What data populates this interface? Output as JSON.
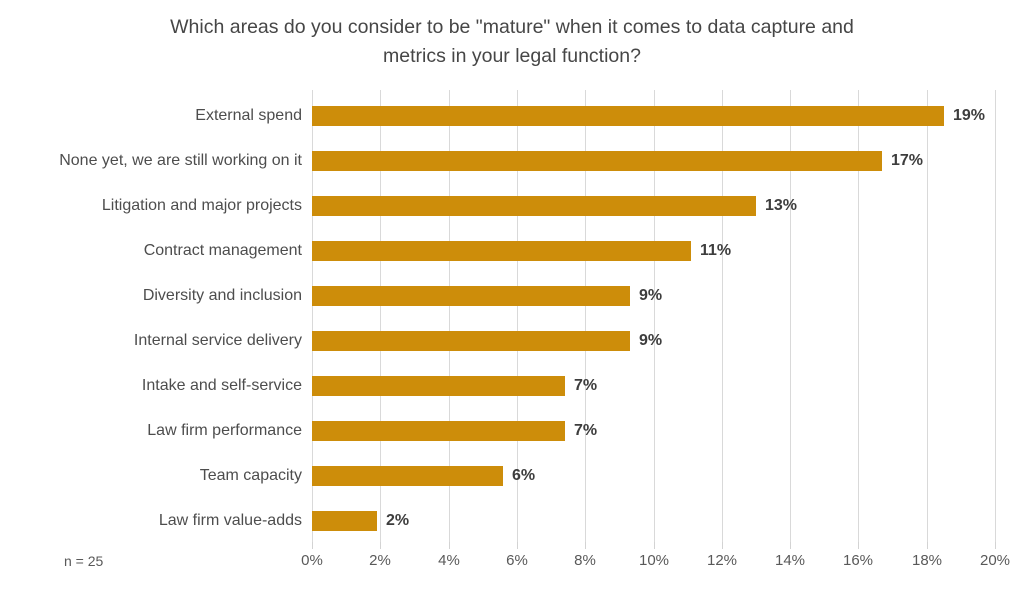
{
  "title_lines": [
    "Which areas do you consider to be \"mature\" when it comes to data capture and",
    "metrics in your legal function?"
  ],
  "footnote": "n = 25",
  "colors": {
    "bar": "#cd8d0a",
    "gridline": "#d9d9d9",
    "title_text": "#464646",
    "category_text": "#4d4d4d",
    "value_text": "#3d3d3d",
    "axis_text": "#595959"
  },
  "chart_data": {
    "type": "bar",
    "orientation": "horizontal",
    "title": "Which areas do you consider to be \"mature\" when it comes to data capture and metrics in your legal function?",
    "categories": [
      "External spend",
      "None yet, we are still working on it",
      "Litigation and major projects",
      "Contract management",
      "Diversity and inclusion",
      "Internal service delivery",
      "Intake and self-service",
      "Law firm performance",
      "Team capacity",
      "Law firm value-adds"
    ],
    "values": [
      19,
      17,
      13,
      11,
      9,
      9,
      7,
      7,
      6,
      2
    ],
    "data_labels": [
      "19%",
      "17%",
      "13%",
      "11%",
      "9%",
      "9%",
      "7%",
      "7%",
      "6%",
      "2%"
    ],
    "bar_lengths_pct": [
      18.5,
      16.7,
      13.0,
      11.1,
      9.3,
      9.3,
      7.4,
      7.4,
      5.6,
      1.9
    ],
    "xlabel": "",
    "ylabel": "",
    "xlim": [
      0,
      20
    ],
    "x_tick_step": 2,
    "x_tick_labels": [
      "0%",
      "2%",
      "4%",
      "6%",
      "8%",
      "10%",
      "12%",
      "14%",
      "16%",
      "18%",
      "20%"
    ],
    "grid": "vertical",
    "legend": "none",
    "sample_note": "n = 25",
    "bar_color": "#cd8d0a"
  }
}
